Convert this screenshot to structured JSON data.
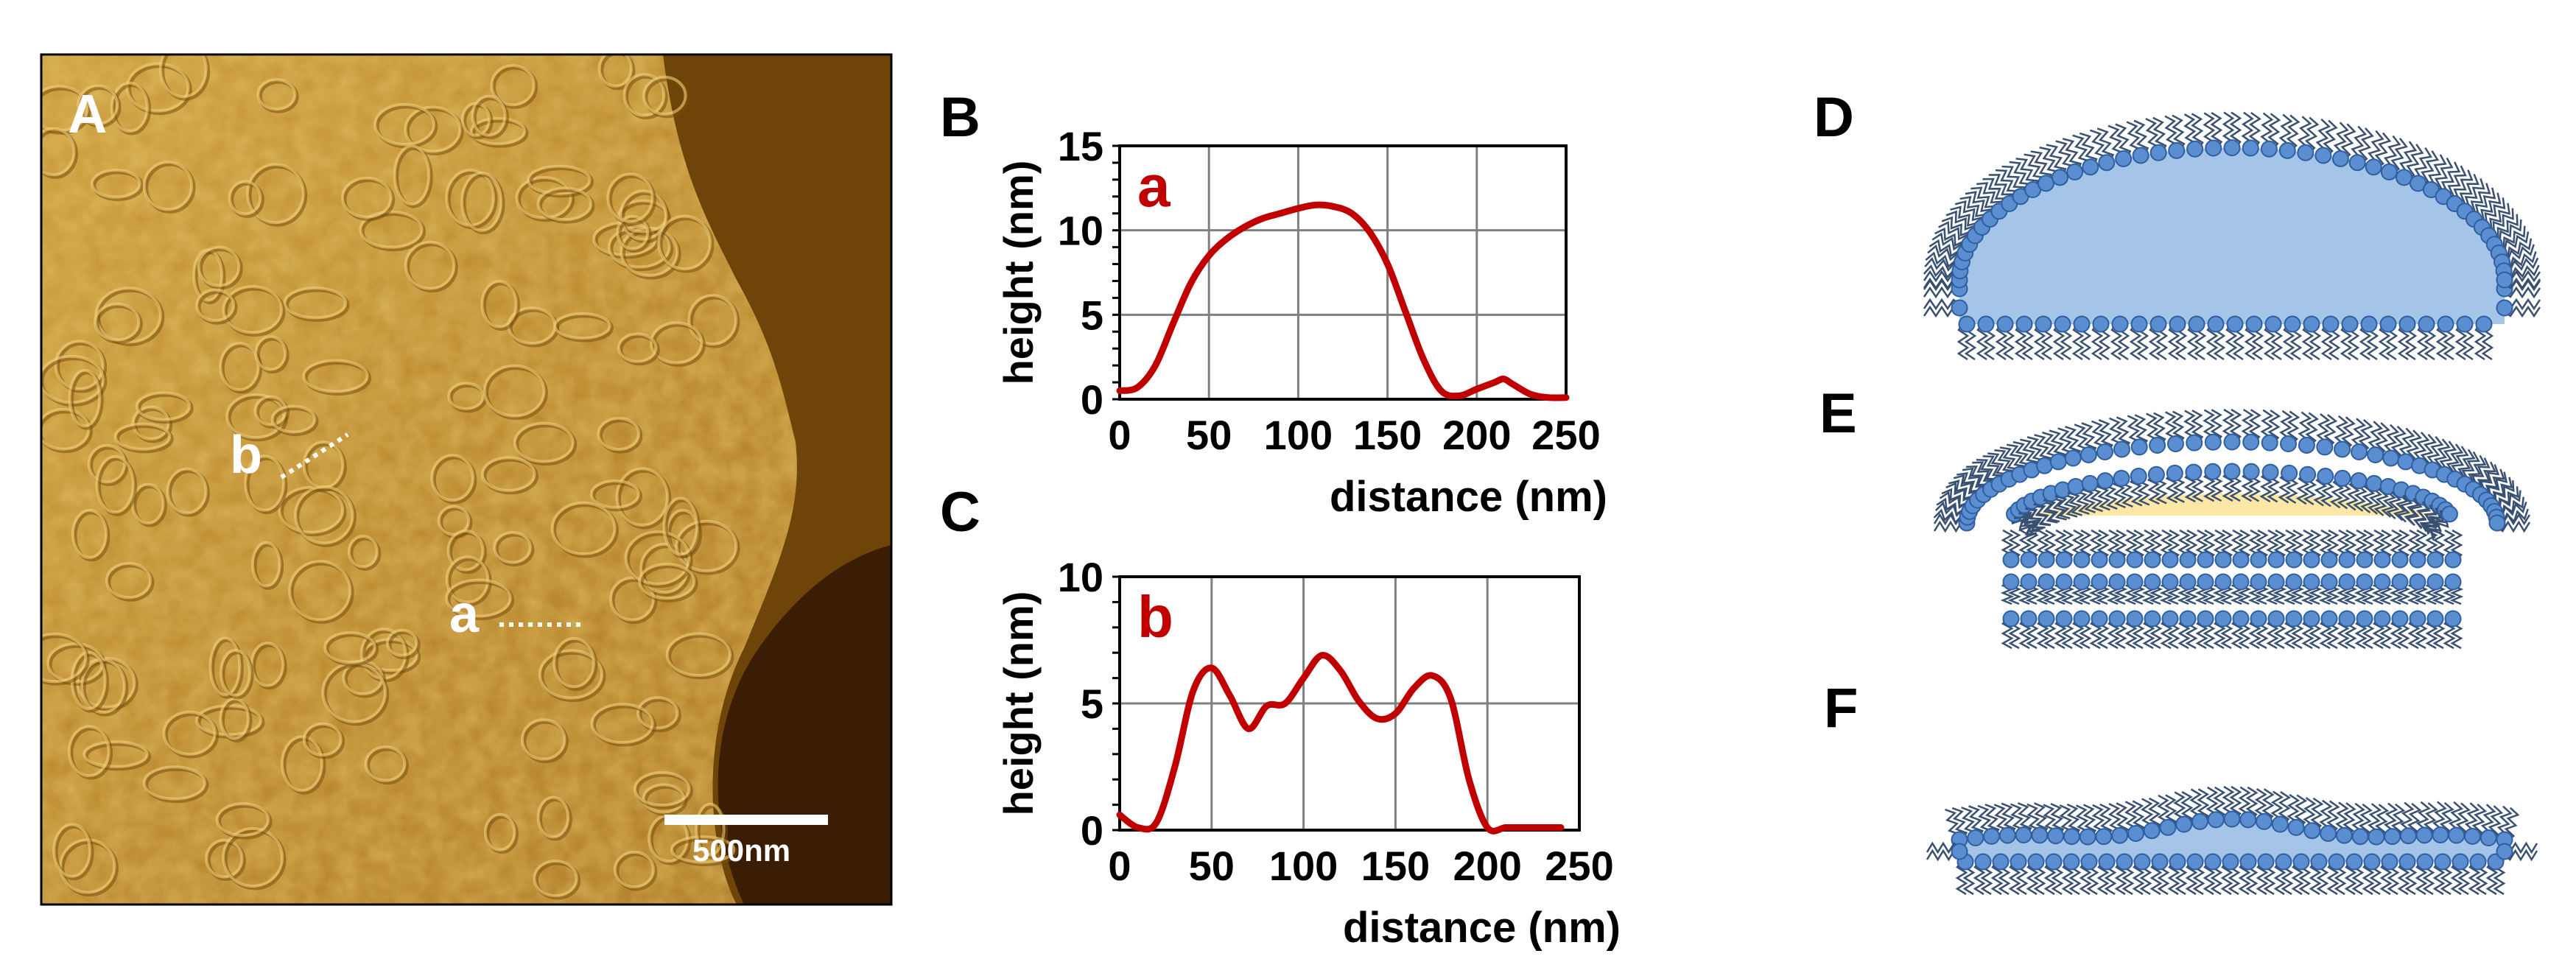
{
  "panel_labels": {
    "A": "A",
    "B": "B",
    "C": "C",
    "D": "D",
    "E": "E",
    "F": "F"
  },
  "afm_image": {
    "profile_a_label": "a",
    "profile_b_label": "b",
    "scale_bar_label": "500nm",
    "colors": {
      "light": "#d8a438",
      "mid": "#b77c18",
      "dark": "#3a1a04",
      "frame": "#000000"
    }
  },
  "chart_data": [
    {
      "id": "B",
      "type": "line",
      "series_label": "a",
      "xlabel": "distance (nm)",
      "ylabel": "height (nm)",
      "xlim": [
        0,
        250
      ],
      "ylim": [
        0,
        15
      ],
      "xticks": [
        0,
        50,
        100,
        150,
        200,
        250
      ],
      "yticks": [
        0,
        5,
        10,
        15
      ],
      "grid": true,
      "line_color": "#c00000",
      "x": [
        0,
        10,
        20,
        30,
        40,
        50,
        60,
        70,
        80,
        90,
        100,
        110,
        120,
        130,
        140,
        150,
        160,
        170,
        180,
        190,
        200,
        210,
        215,
        220,
        230,
        240,
        250
      ],
      "y": [
        0.5,
        0.7,
        2.0,
        4.5,
        6.9,
        8.5,
        9.5,
        10.2,
        10.7,
        11.0,
        11.3,
        11.5,
        11.4,
        11.0,
        9.9,
        8.0,
        5.2,
        2.4,
        0.5,
        0.2,
        0.6,
        1.0,
        1.2,
        0.9,
        0.3,
        0.1,
        0.1
      ]
    },
    {
      "id": "C",
      "type": "line",
      "series_label": "b",
      "xlabel": "distance (nm)",
      "ylabel": "height (nm)",
      "xlim": [
        0,
        250
      ],
      "ylim": [
        0,
        10
      ],
      "xticks": [
        0,
        50,
        100,
        150,
        200,
        250
      ],
      "yticks": [
        0,
        5,
        10
      ],
      "grid": true,
      "line_color": "#c00000",
      "x": [
        0,
        10,
        20,
        30,
        40,
        50,
        60,
        70,
        80,
        90,
        100,
        110,
        120,
        130,
        140,
        150,
        160,
        170,
        180,
        190,
        200,
        210,
        220,
        240
      ],
      "y": [
        0.6,
        0.1,
        0.3,
        2.5,
        5.5,
        6.4,
        5.3,
        4.0,
        4.9,
        5.0,
        6.0,
        6.9,
        6.3,
        5.1,
        4.4,
        4.6,
        5.6,
        6.1,
        5.2,
        2.0,
        0.1,
        0.1,
        0.1,
        0.1
      ]
    }
  ],
  "schematics": {
    "colors": {
      "lipid_head": "#5b8ed0",
      "lipid_head_stroke": "#2f5fa0",
      "tail": "#3a5070",
      "core_fill": "#a4c4e8",
      "oil_fill": "#fde7a6"
    }
  }
}
